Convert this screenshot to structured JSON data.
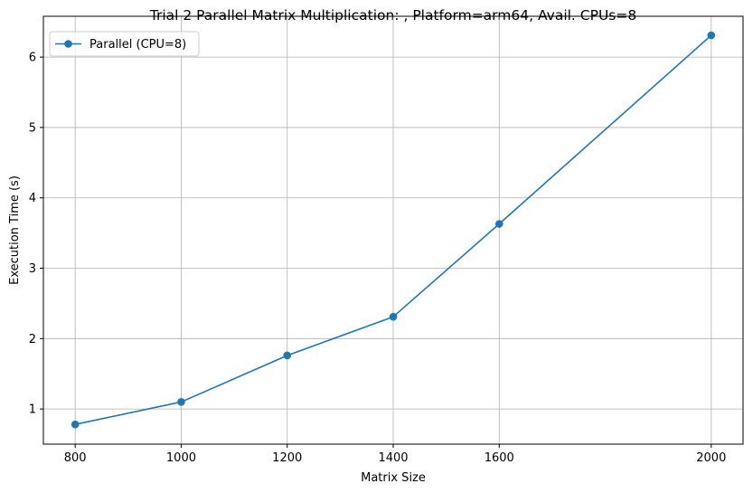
{
  "chart_data": {
    "type": "line",
    "title": "Trial 2 Parallel Matrix Multiplication: , Platform=arm64, Avail. CPUs=8",
    "xlabel": "Matrix Size",
    "ylabel": "Execution Time (s)",
    "x": [
      800,
      1000,
      1200,
      1400,
      1600,
      2000
    ],
    "xticks": [
      800,
      1000,
      1200,
      1400,
      1600,
      2000
    ],
    "yticks": [
      1,
      2,
      3,
      4,
      5,
      6
    ],
    "xlim": [
      740,
      2060
    ],
    "ylim": [
      0.5,
      6.58
    ],
    "grid": true,
    "legend_position": "top-left",
    "series": [
      {
        "name": "Parallel (CPU=8)",
        "color": "#1f77b4",
        "marker": "circle",
        "values": [
          0.78,
          1.1,
          1.76,
          2.31,
          3.63,
          6.31
        ]
      }
    ]
  }
}
